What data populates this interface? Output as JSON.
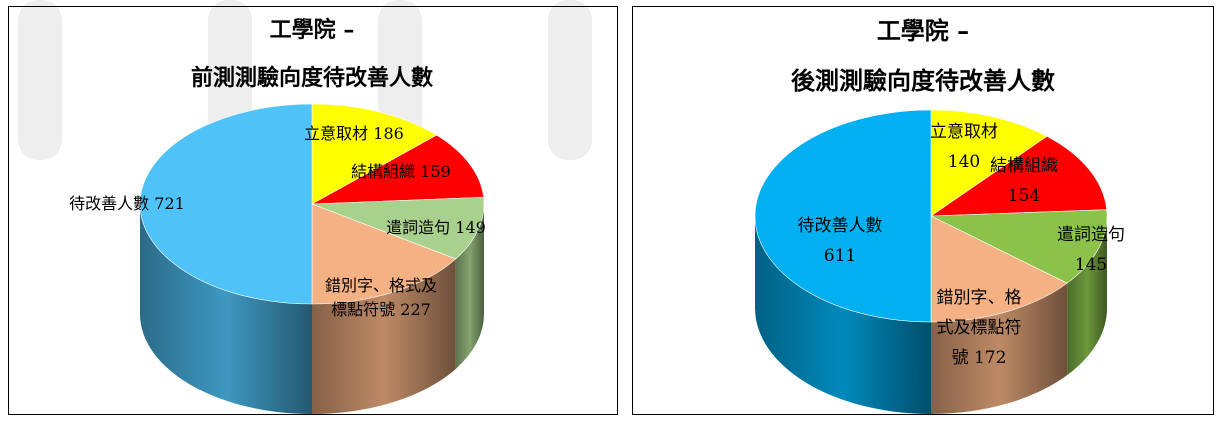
{
  "chart_data": [
    {
      "type": "pie",
      "title": [
        "工學院 –",
        "前測測驗向度待改善人數"
      ],
      "categories": [
        "立意取材",
        "結構組織",
        "遣詞造句",
        "錯別字、格式及標點符號",
        "待改善人數"
      ],
      "values": [
        186,
        159,
        149,
        227,
        721
      ],
      "colors": [
        "#ffff00",
        "#ff0000",
        "#a9d18e",
        "#f4b183",
        "#4fc3f7"
      ],
      "labels": [
        [
          "立意取材 186"
        ],
        [
          "結構組織 159"
        ],
        [
          "遣詞造句 149"
        ],
        [
          "錯別字、格式及",
          "標點符號 227"
        ],
        [
          "待改善人數 721"
        ]
      ]
    },
    {
      "type": "pie",
      "title": [
        "工學院 –",
        "後測測驗向度待改善人數"
      ],
      "categories": [
        "立意取材",
        "結構組織",
        "遣詞造句",
        "錯別字、格式及標點符號",
        "待改善人數"
      ],
      "values": [
        140,
        154,
        145,
        172,
        611
      ],
      "colors": [
        "#ffff00",
        "#ff0000",
        "#8bc34a",
        "#f4b183",
        "#00b0f0"
      ],
      "labels": [
        [
          "立意取材",
          "140"
        ],
        [
          "結構組織",
          "154"
        ],
        [
          "遣詞造句",
          "145"
        ],
        [
          "錯別字、格",
          "式及標點符",
          "號 172"
        ],
        [
          "待改善人數",
          "611"
        ]
      ]
    }
  ]
}
